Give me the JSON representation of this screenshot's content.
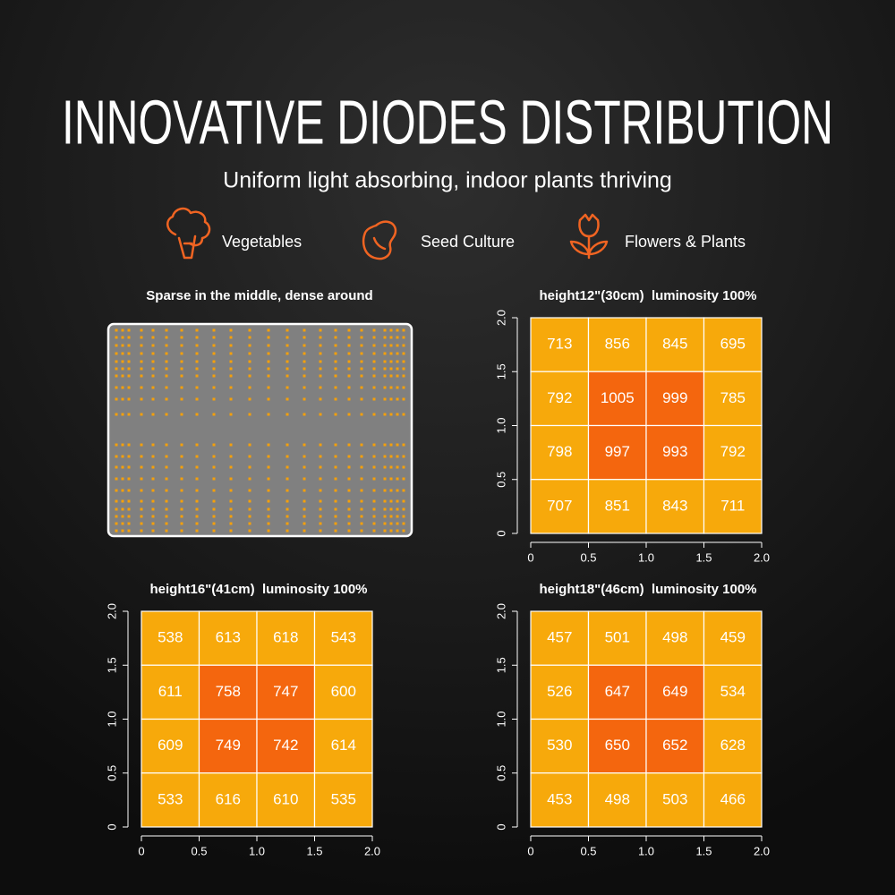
{
  "header": {
    "title": "INNOVATIVE DIODES DISTRIBUTION",
    "subtitle": "Uniform light absorbing, indoor plants thriving"
  },
  "features": [
    "Vegetables",
    "Seed Culture",
    "Flowers & Plants"
  ],
  "diode_panel": {
    "title": "Sparse in the middle, dense around"
  },
  "chart_data": [
    {
      "type": "heatmap",
      "title": "height12\"(30cm)  luminosity 100%",
      "values": [
        [
          713,
          856,
          845,
          695
        ],
        [
          792,
          1005,
          999,
          785
        ],
        [
          798,
          997,
          993,
          792
        ],
        [
          707,
          851,
          843,
          711
        ]
      ],
      "cell_colors": [
        [
          "#f7a90b",
          "#f7a90b",
          "#f7a90b",
          "#f7a90b"
        ],
        [
          "#f7a90b",
          "#f4660e",
          "#f4660e",
          "#f7a90b"
        ],
        [
          "#f7a90b",
          "#f4660e",
          "#f4660e",
          "#f7a90b"
        ],
        [
          "#f7a90b",
          "#f7a90b",
          "#f7a90b",
          "#f7a90b"
        ]
      ],
      "xlim": [
        0,
        2
      ],
      "ylim": [
        0,
        2
      ],
      "xticks": [
        0,
        0.5,
        {
          "value": 1,
          "label": "1.0"
        },
        1.5,
        {
          "value": 2,
          "label": "2.0"
        }
      ],
      "yticks": [
        0,
        0.5,
        {
          "value": 1,
          "label": "1.0"
        },
        1.5,
        {
          "value": 2,
          "label": "2.0"
        }
      ]
    },
    {
      "type": "heatmap",
      "title": "height16\"(41cm)  luminosity 100%",
      "values": [
        [
          538,
          613,
          618,
          543
        ],
        [
          611,
          758,
          747,
          600
        ],
        [
          609,
          749,
          742,
          614
        ],
        [
          533,
          616,
          610,
          535
        ]
      ],
      "cell_colors": [
        [
          "#f7a90b",
          "#f7a90b",
          "#f7a90b",
          "#f7a90b"
        ],
        [
          "#f7a90b",
          "#f4660e",
          "#f4660e",
          "#f7a90b"
        ],
        [
          "#f7a90b",
          "#f4660e",
          "#f4660e",
          "#f7a90b"
        ],
        [
          "#f7a90b",
          "#f7a90b",
          "#f7a90b",
          "#f7a90b"
        ]
      ],
      "xlim": [
        0,
        2
      ],
      "ylim": [
        0,
        2
      ],
      "xticks": [
        0,
        0.5,
        {
          "value": 1,
          "label": "1.0"
        },
        1.5,
        {
          "value": 2,
          "label": "2.0"
        }
      ],
      "yticks": [
        0,
        0.5,
        {
          "value": 1,
          "label": "1.0"
        },
        1.5,
        {
          "value": 2,
          "label": "2.0"
        }
      ]
    },
    {
      "type": "heatmap",
      "title": "height18\"(46cm)  luminosity 100%",
      "values": [
        [
          457,
          501,
          498,
          459
        ],
        [
          526,
          647,
          649,
          534
        ],
        [
          530,
          650,
          652,
          628
        ],
        [
          453,
          498,
          503,
          466
        ]
      ],
      "cell_colors": [
        [
          "#f7a90b",
          "#f7a90b",
          "#f7a90b",
          "#f7a90b"
        ],
        [
          "#f7a90b",
          "#f4660e",
          "#f4660e",
          "#f7a90b"
        ],
        [
          "#f7a90b",
          "#f4660e",
          "#f4660e",
          "#f7a90b"
        ],
        [
          "#f7a90b",
          "#f7a90b",
          "#f7a90b",
          "#f7a90b"
        ]
      ],
      "xlim": [
        0,
        2
      ],
      "ylim": [
        0,
        2
      ],
      "xticks": [
        0,
        0.5,
        {
          "value": 1,
          "label": "1.0"
        },
        1.5,
        {
          "value": 2,
          "label": "2.0"
        }
      ],
      "yticks": [
        0,
        0.5,
        {
          "value": 1,
          "label": "1.0"
        },
        1.5,
        {
          "value": 2,
          "label": "2.0"
        }
      ]
    }
  ]
}
